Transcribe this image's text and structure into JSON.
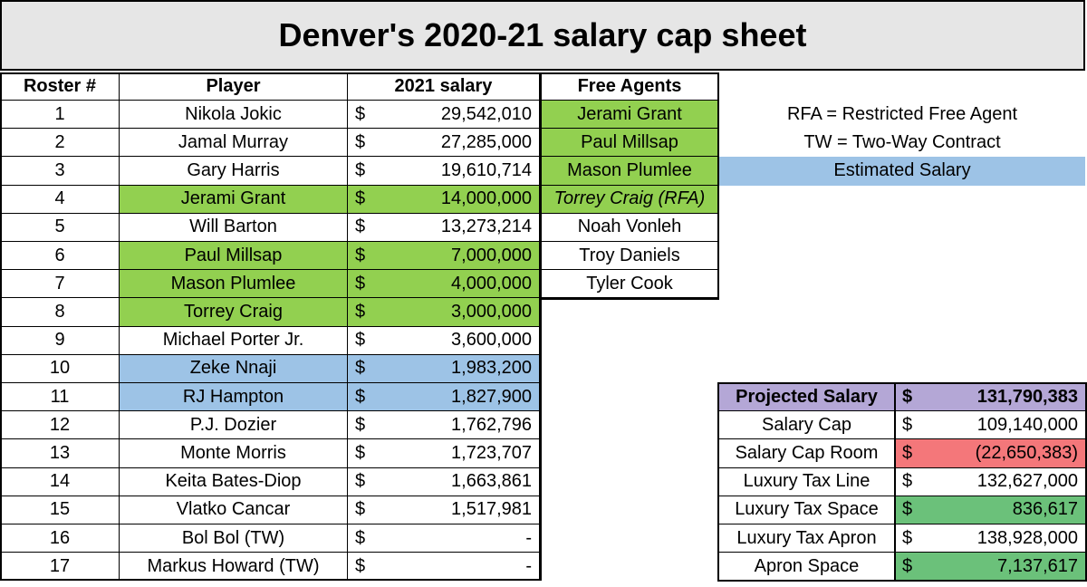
{
  "title": "Denver's 2020-21 salary cap sheet",
  "headers": {
    "roster": "Roster #",
    "player": "Player",
    "salary": "2021 salary",
    "free_agents": "Free Agents"
  },
  "currency_symbol": "$",
  "colors": {
    "green": "#92d050",
    "blue": "#9dc3e6",
    "purple": "#b4a7d6",
    "red": "#f4777a",
    "dark_green": "#6bc17a",
    "title_bg": "#e6e6e6"
  },
  "roster": [
    {
      "num": "1",
      "player": "Nikola Jokic",
      "salary": "29,542,010",
      "highlight": "none"
    },
    {
      "num": "2",
      "player": "Jamal Murray",
      "salary": "27,285,000",
      "highlight": "none"
    },
    {
      "num": "3",
      "player": "Gary Harris",
      "salary": "19,610,714",
      "highlight": "none"
    },
    {
      "num": "4",
      "player": "Jerami Grant",
      "salary": "14,000,000",
      "highlight": "green"
    },
    {
      "num": "5",
      "player": "Will Barton",
      "salary": "13,273,214",
      "highlight": "none"
    },
    {
      "num": "6",
      "player": "Paul Millsap",
      "salary": "7,000,000",
      "highlight": "green"
    },
    {
      "num": "7",
      "player": "Mason Plumlee",
      "salary": "4,000,000",
      "highlight": "green"
    },
    {
      "num": "8",
      "player": "Torrey Craig",
      "salary": "3,000,000",
      "highlight": "green"
    },
    {
      "num": "9",
      "player": "Michael Porter Jr.",
      "salary": "3,600,000",
      "highlight": "none"
    },
    {
      "num": "10",
      "player": "Zeke Nnaji",
      "salary": "1,983,200",
      "highlight": "blue"
    },
    {
      "num": "11",
      "player": "RJ Hampton",
      "salary": "1,827,900",
      "highlight": "blue"
    },
    {
      "num": "12",
      "player": "P.J. Dozier",
      "salary": "1,762,796",
      "highlight": "none"
    },
    {
      "num": "13",
      "player": "Monte Morris",
      "salary": "1,723,707",
      "highlight": "none"
    },
    {
      "num": "14",
      "player": "Keita Bates-Diop",
      "salary": "1,663,861",
      "highlight": "none"
    },
    {
      "num": "15",
      "player": "Vlatko Cancar",
      "salary": "1,517,981",
      "highlight": "none"
    },
    {
      "num": "16",
      "player": "Bol Bol (TW)",
      "salary": "-",
      "highlight": "none"
    },
    {
      "num": "17",
      "player": "Markus Howard (TW)",
      "salary": "-",
      "highlight": "none"
    }
  ],
  "free_agents": [
    {
      "name": "Jerami Grant",
      "highlight": "green",
      "italic": false
    },
    {
      "name": "Paul Millsap",
      "highlight": "green",
      "italic": false
    },
    {
      "name": "Mason Plumlee",
      "highlight": "green",
      "italic": false
    },
    {
      "name": "Torrey Craig (RFA)",
      "highlight": "green",
      "italic": true
    },
    {
      "name": "Noah Vonleh",
      "highlight": "none",
      "italic": false
    },
    {
      "name": "Troy Daniels",
      "highlight": "none",
      "italic": false
    },
    {
      "name": "Tyler Cook",
      "highlight": "none",
      "italic": false
    }
  ],
  "legend": {
    "rfa": "RFA = Restricted Free Agent",
    "tw": "TW = Two-Way Contract",
    "estimated": "Estimated Salary"
  },
  "summary": [
    {
      "label": "Projected Salary",
      "value": "131,790,383",
      "bold": true,
      "label_color": "purple",
      "value_color": "purple"
    },
    {
      "label": "Salary Cap",
      "value": "109,140,000",
      "bold": false,
      "label_color": "none",
      "value_color": "none"
    },
    {
      "label": "Salary Cap Room",
      "value": "(22,650,383)",
      "bold": false,
      "label_color": "none",
      "value_color": "red"
    },
    {
      "label": "Luxury Tax Line",
      "value": "132,627,000",
      "bold": false,
      "label_color": "none",
      "value_color": "none"
    },
    {
      "label": "Luxury Tax Space",
      "value": "836,617",
      "bold": false,
      "label_color": "none",
      "value_color": "dark_green"
    },
    {
      "label": "Luxury Tax Apron",
      "value": "138,928,000",
      "bold": false,
      "label_color": "none",
      "value_color": "none"
    },
    {
      "label": "Apron Space",
      "value": "7,137,617",
      "bold": false,
      "label_color": "none",
      "value_color": "dark_green"
    }
  ]
}
